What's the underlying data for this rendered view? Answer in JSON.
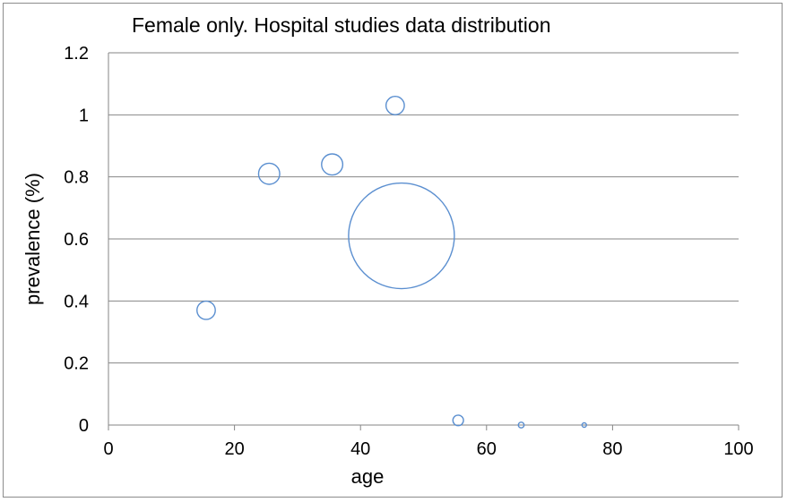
{
  "chart_data": {
    "type": "scatter",
    "title": "Female only. Hospital studies data distribution",
    "xlabel": "age",
    "ylabel": "prevalence (%)",
    "xlim": [
      0,
      100
    ],
    "ylim": [
      0,
      1.2
    ],
    "x_ticks": [
      "0",
      "20",
      "40",
      "60",
      "80",
      "100"
    ],
    "y_ticks": [
      "0",
      "0.2",
      "0.4",
      "0.6",
      "0.8",
      "1",
      "1.2"
    ],
    "grid": "horizontal",
    "bubble_color": "#5b8fd0",
    "points": [
      {
        "x": 15.5,
        "y": 0.37,
        "size": 3
      },
      {
        "x": 25.5,
        "y": 0.81,
        "size": 4
      },
      {
        "x": 35.5,
        "y": 0.84,
        "size": 4
      },
      {
        "x": 45.5,
        "y": 1.03,
        "size": 3
      },
      {
        "x": 46.5,
        "y": 0.61,
        "size": 100
      },
      {
        "x": 55.5,
        "y": 0.015,
        "size": 1
      },
      {
        "x": 65.5,
        "y": 0.0,
        "size": 0.3
      },
      {
        "x": 75.5,
        "y": 0.0,
        "size": 0.1
      }
    ]
  }
}
